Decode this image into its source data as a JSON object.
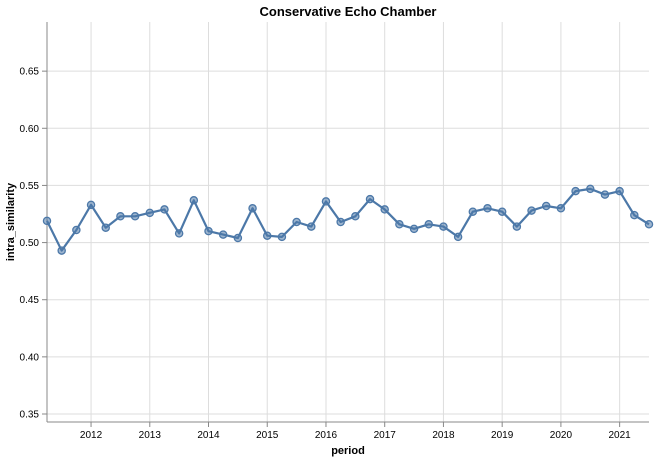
{
  "chart_data": {
    "type": "line",
    "title": "Conservative Echo Chamber",
    "xlabel": "period",
    "ylabel": "intra_similarity",
    "xlim": [
      2011.25,
      2021.5
    ],
    "ylim": [
      0.343,
      0.693
    ],
    "x_ticks": [
      2012,
      2013,
      2014,
      2015,
      2016,
      2017,
      2018,
      2019,
      2020,
      2021
    ],
    "y_ticks": [
      0.35,
      0.4,
      0.45,
      0.5,
      0.55,
      0.6,
      0.65
    ],
    "grid": true,
    "color": "#4c78a8",
    "series": [
      {
        "name": "intra_similarity",
        "x": [
          2011.25,
          2011.5,
          2011.75,
          2012.0,
          2012.25,
          2012.5,
          2012.75,
          2013.0,
          2013.25,
          2013.5,
          2013.75,
          2014.0,
          2014.25,
          2014.5,
          2014.75,
          2015.0,
          2015.25,
          2015.5,
          2015.75,
          2016.0,
          2016.25,
          2016.5,
          2016.75,
          2017.0,
          2017.25,
          2017.5,
          2017.75,
          2018.0,
          2018.25,
          2018.5,
          2018.75,
          2019.0,
          2019.25,
          2019.5,
          2019.75,
          2020.0,
          2020.25,
          2020.5,
          2020.75,
          2021.0,
          2021.25,
          2021.5
        ],
        "values": [
          0.519,
          0.493,
          0.511,
          0.533,
          0.513,
          0.523,
          0.523,
          0.526,
          0.529,
          0.508,
          0.537,
          0.51,
          0.507,
          0.504,
          0.53,
          0.506,
          0.505,
          0.518,
          0.514,
          0.536,
          0.518,
          0.523,
          0.538,
          0.529,
          0.516,
          0.512,
          0.516,
          0.514,
          0.505,
          0.527,
          0.53,
          0.527,
          0.514,
          0.528,
          0.532,
          0.53,
          0.545,
          0.547,
          0.542,
          0.545,
          0.524,
          0.516
        ]
      }
    ]
  }
}
